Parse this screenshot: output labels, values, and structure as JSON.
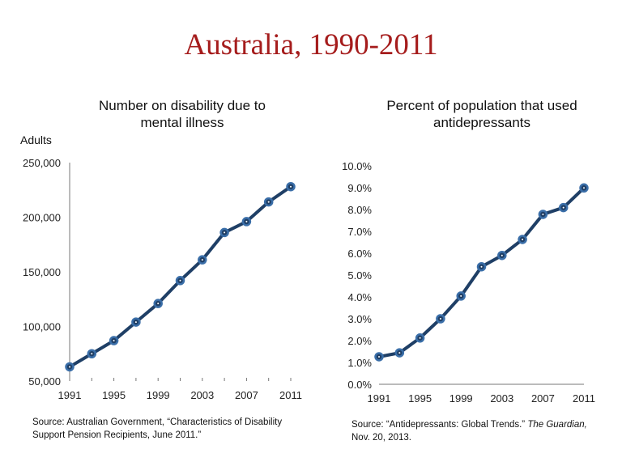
{
  "slide_title": "Australia, 1990-2011",
  "chart_data": [
    {
      "type": "line",
      "title_lines": [
        "Number on disability due to",
        "mental illness"
      ],
      "ylabel": "Adults",
      "x": [
        1991,
        1993,
        1995,
        1997,
        1999,
        2001,
        2003,
        2005,
        2007,
        2009,
        2011
      ],
      "xticklabels": [
        "1991",
        "1995",
        "1999",
        "2003",
        "2007",
        "2011"
      ],
      "values": [
        63000,
        75000,
        87000,
        104000,
        121000,
        142000,
        161000,
        186000,
        196000,
        214000,
        228000
      ],
      "ylim": [
        50000,
        250000
      ],
      "yticklabels": [
        "50,000",
        "100,000",
        "150,000",
        "200,000",
        "250,000"
      ],
      "yticks": [
        50000,
        100000,
        150000,
        200000,
        250000
      ],
      "line_color": "#1f3f66",
      "marker_color": "#3a6ea8",
      "grid": false,
      "source_lines": [
        "Source:  Australian Government, “Characteristics of Disability",
        "Support Pension Recipients, June 2011.”"
      ]
    },
    {
      "type": "line",
      "title_lines": [
        "Percent of population that used",
        "antidepressants"
      ],
      "x": [
        1991,
        1993,
        1995,
        1997,
        1999,
        2001,
        2003,
        2005,
        2007,
        2009,
        2011
      ],
      "xticklabels": [
        "1991",
        "1995",
        "1999",
        "2003",
        "2007",
        "2011"
      ],
      "values": [
        1.26,
        1.44,
        2.12,
        3.0,
        4.04,
        5.38,
        5.9,
        6.63,
        7.78,
        8.09,
        8.99
      ],
      "ylim": [
        0,
        10
      ],
      "yticks": [
        0,
        1,
        2,
        3,
        4,
        5,
        6,
        7,
        8,
        9,
        10
      ],
      "yticklabels": [
        "0.0%",
        "1.0%",
        "2.0%",
        "3.0%",
        "4.0%",
        "5.0%",
        "6.0%",
        "7.0%",
        "8.0%",
        "9.0%",
        "10.0%"
      ],
      "line_color": "#1f3f66",
      "marker_color": "#3a6ea8",
      "grid": false,
      "source_prefix": "Source:  “Antidepressants: Global Trends.” ",
      "source_italic": "The Guardian,",
      "source_line2": "Nov. 20, 2013."
    }
  ]
}
